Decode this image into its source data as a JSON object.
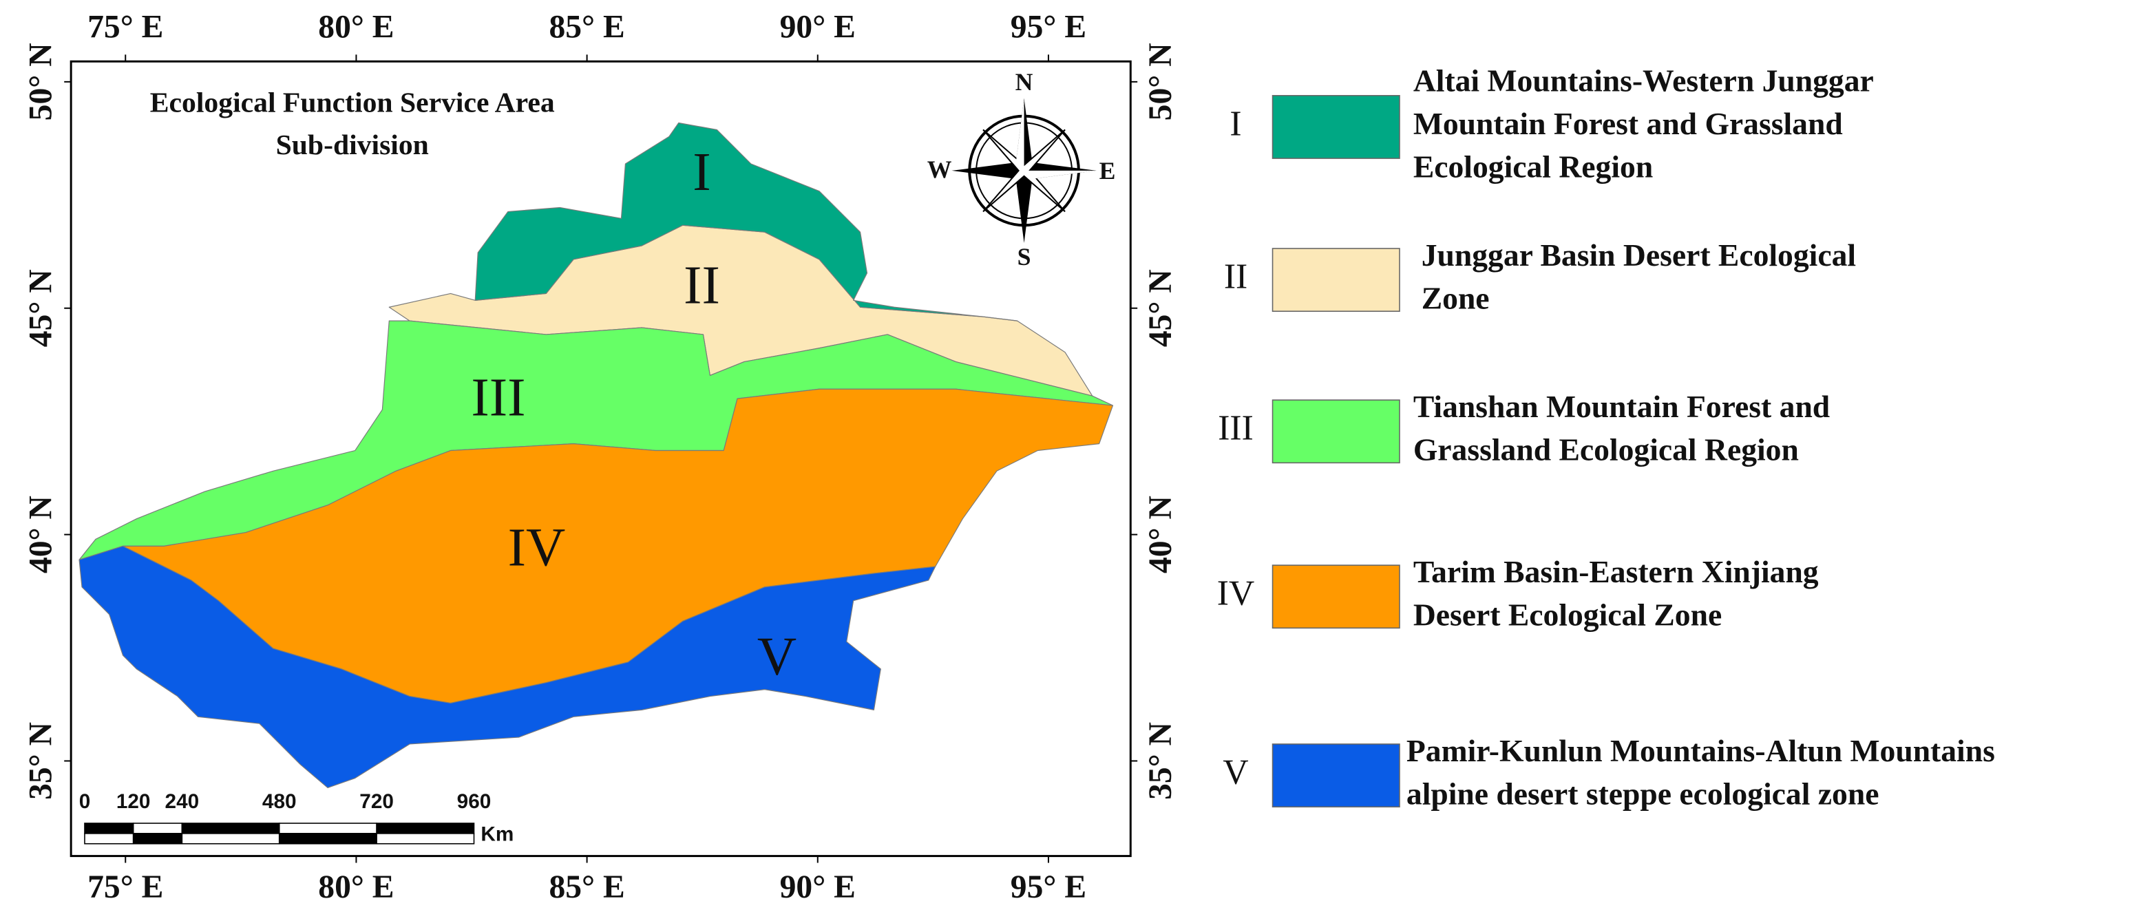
{
  "map": {
    "title_lines": [
      "Ecological Function Service Area",
      "Sub-division"
    ],
    "lon_range": [
      73.82,
      96.78
    ],
    "lat_range": [
      32.9,
      50.45
    ],
    "lon_ticks": [
      {
        "value": 75,
        "label": "75° E"
      },
      {
        "value": 80,
        "label": "80° E"
      },
      {
        "value": 85,
        "label": "85° E"
      },
      {
        "value": 90,
        "label": "90° E"
      },
      {
        "value": 95,
        "label": "95° E"
      }
    ],
    "lat_ticks": [
      {
        "value": 50,
        "label": "50° N"
      },
      {
        "value": 45,
        "label": "45° N"
      },
      {
        "value": 40,
        "label": "40° N"
      },
      {
        "value": 35,
        "label": "35° N"
      }
    ],
    "region_labels": [
      "I",
      "II",
      "III",
      "IV",
      "V"
    ],
    "compass": {
      "N": "N",
      "E": "E",
      "S": "S",
      "W": "W"
    },
    "scale_bar": {
      "ticks": [
        0,
        120,
        240,
        480,
        720,
        960
      ],
      "unit": "Km"
    }
  },
  "legend": {
    "items": [
      {
        "numeral": "I",
        "color": "#00a884",
        "lines": [
          "Altai Mountains-Western Junggar",
          "Mountain Forest and Grassland",
          "Ecological Region"
        ]
      },
      {
        "numeral": "II",
        "color": "#fce8b8",
        "lines": [
          "Junggar Basin Desert Ecological",
          "Zone"
        ]
      },
      {
        "numeral": "III",
        "color": "#66ff66",
        "lines": [
          "Tianshan Mountain Forest and",
          "Grassland Ecological Region"
        ]
      },
      {
        "numeral": "IV",
        "color": "#ff9900",
        "lines": [
          "Tarim Basin-Eastern Xinjiang",
          "Desert Ecological Zone"
        ]
      },
      {
        "numeral": "V",
        "color": "#0a5ce6",
        "lines": [
          "Pamir-Kunlun Mountains-Altun Mountains",
          "alpine desert steppe ecological zone"
        ]
      }
    ]
  }
}
